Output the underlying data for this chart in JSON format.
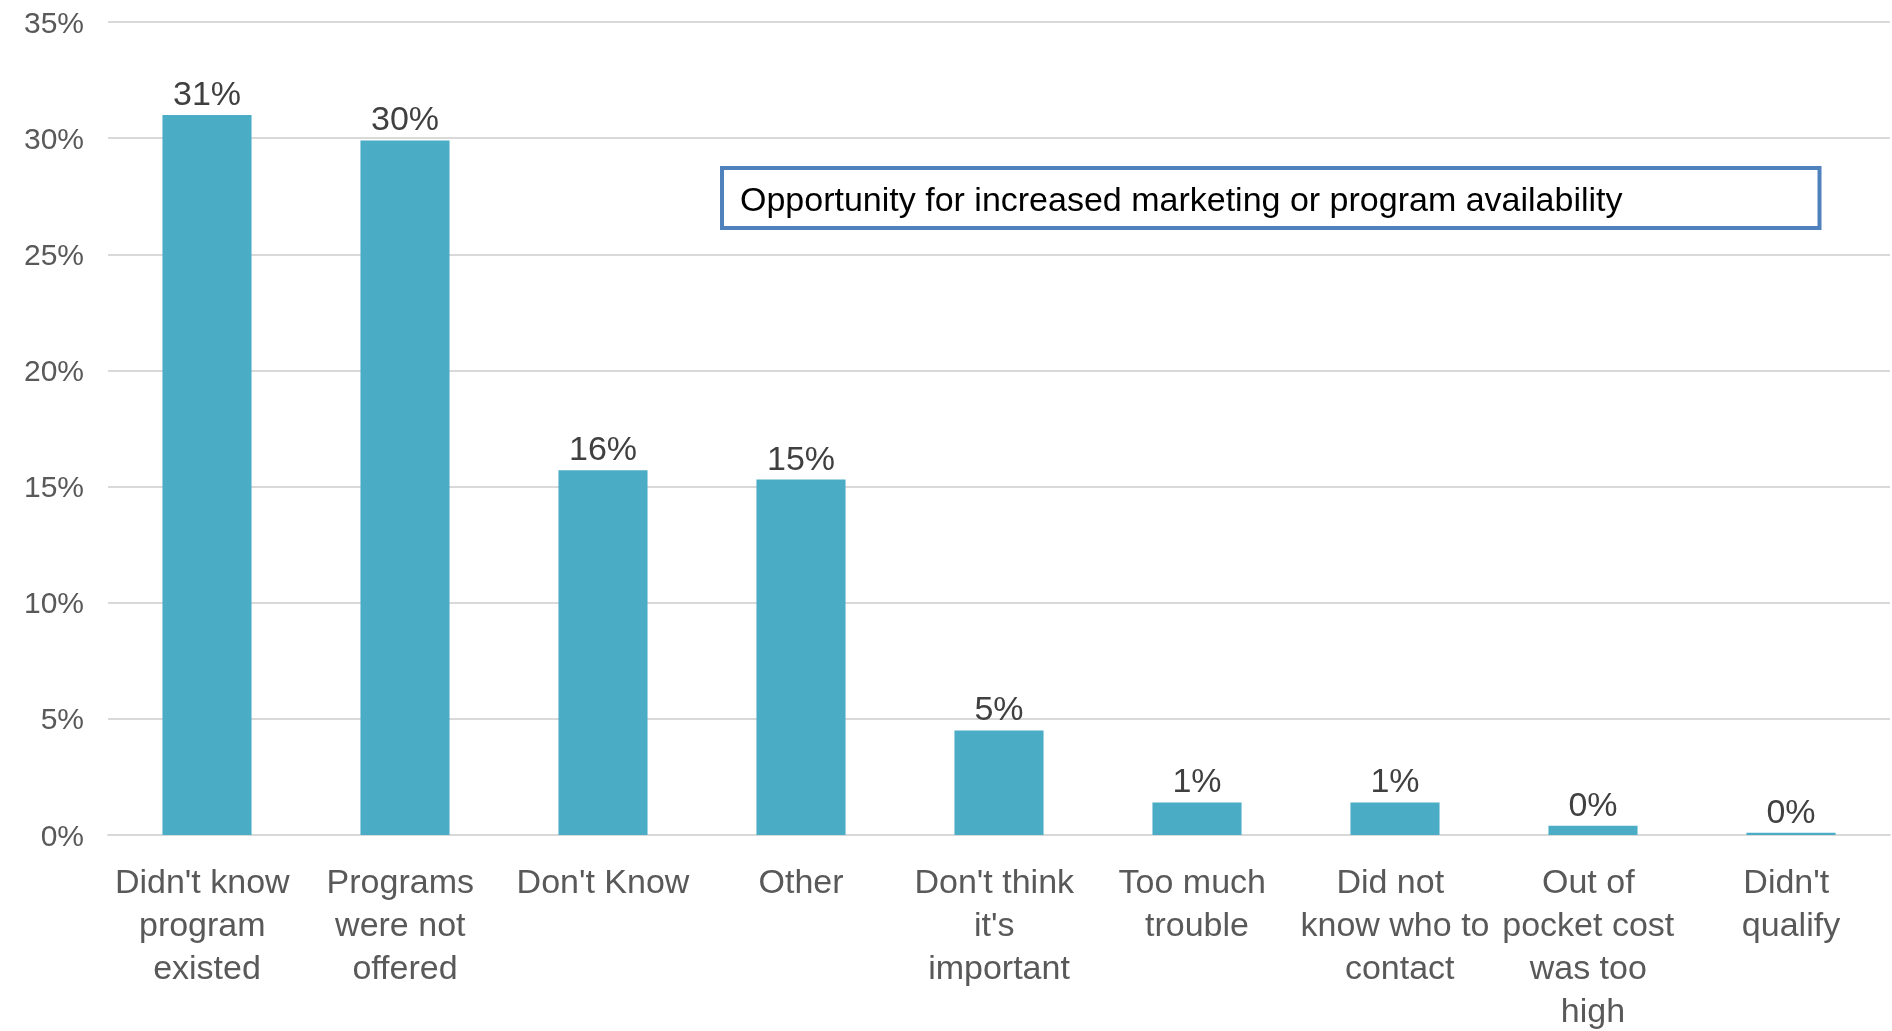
{
  "chart_data": {
    "type": "bar",
    "categories": [
      "Didn't know program existed",
      "Programs were not offered",
      "Don't Know",
      "Other",
      "Don't think it's important",
      "Too much trouble",
      "Did not know who to contact",
      "Out of pocket cost was too high",
      "Didn't qualify"
    ],
    "values": [
      31.0,
      29.9,
      15.7,
      15.3,
      4.5,
      1.4,
      1.4,
      0.4,
      0.1
    ],
    "value_labels": [
      "31%",
      "30%",
      "16%",
      "15%",
      "5%",
      "1%",
      "1%",
      "0%",
      "0%"
    ],
    "color": "#4bacc6",
    "ylim": [
      0,
      35
    ],
    "yticks": [
      {
        "value": 0,
        "label": "0%"
      },
      {
        "value": 5,
        "label": "5%"
      },
      {
        "value": 10,
        "label": "10%"
      },
      {
        "value": 15,
        "label": "15%"
      },
      {
        "value": 20,
        "label": "20%"
      },
      {
        "value": 25,
        "label": "25%"
      },
      {
        "value": 30,
        "label": "30%"
      },
      {
        "value": 35,
        "label": "35%"
      }
    ],
    "grid": "y",
    "annotations": [
      "Opportunity for increased marketing or program availability"
    ]
  }
}
